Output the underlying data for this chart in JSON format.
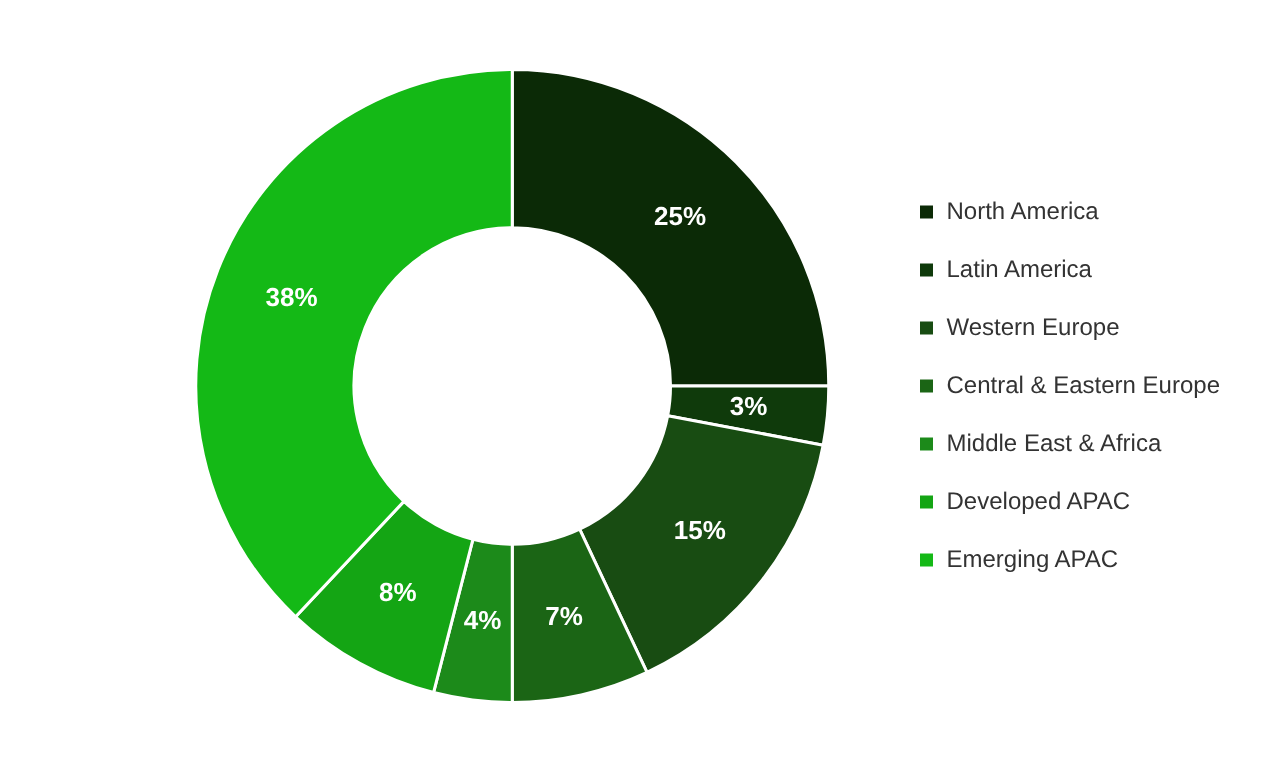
{
  "chart_data": {
    "type": "donut",
    "categories": [
      "North America",
      "Latin America",
      "Western Europe",
      "Central & Eastern Europe",
      "Middle East & Africa",
      "Developed APAC",
      "Emerging APAC"
    ],
    "values": [
      25,
      3,
      15,
      7,
      4,
      8,
      38
    ],
    "colors": [
      "#0b2a06",
      "#0f3a0b",
      "#184c12",
      "#1b6515",
      "#1c8a1a",
      "#14a514",
      "#14b916"
    ],
    "value_labels": [
      "25%",
      "3%",
      "15%",
      "7%",
      "4%",
      "8%",
      "38%"
    ],
    "legend": "right"
  }
}
